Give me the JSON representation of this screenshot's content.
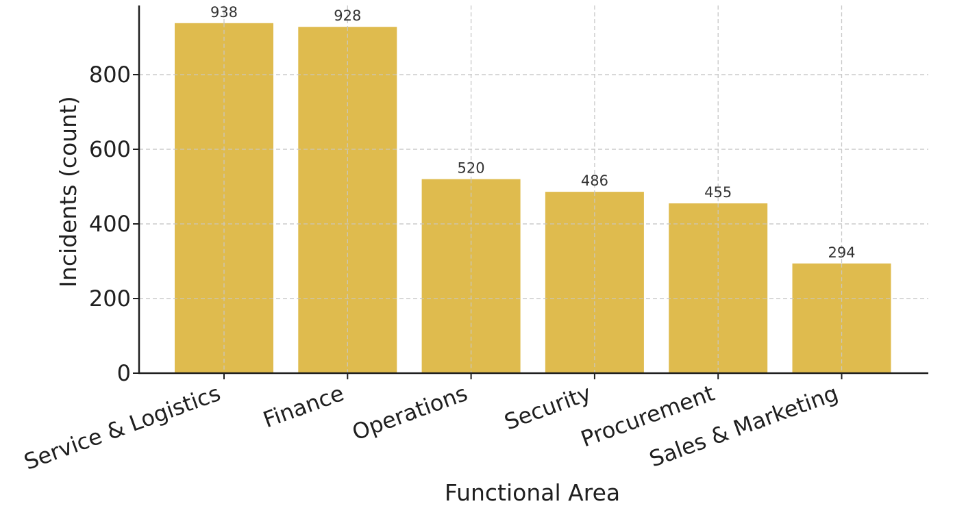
{
  "chart_data": {
    "type": "bar",
    "title": "",
    "xlabel": "Functional Area",
    "ylabel": "Incidents (count)",
    "categories": [
      "Service & Logistics",
      "Finance",
      "Operations",
      "Security",
      "Procurement",
      "Sales & Marketing"
    ],
    "values": [
      938,
      928,
      520,
      486,
      455,
      294
    ],
    "data_labels": [
      "938",
      "928",
      "520",
      "486",
      "455",
      "294"
    ],
    "ylim": [
      0,
      1000
    ],
    "yticks": [
      0,
      200,
      400,
      600,
      800
    ],
    "ytick_labels": [
      "0",
      "200",
      "400",
      "600",
      "800"
    ],
    "grid": true,
    "legend": "none",
    "colors": {
      "bar": "#DFBB4E",
      "grid": "#C8C8C8",
      "axis": "#1f1f1f",
      "text": "#1f1f1f"
    }
  }
}
